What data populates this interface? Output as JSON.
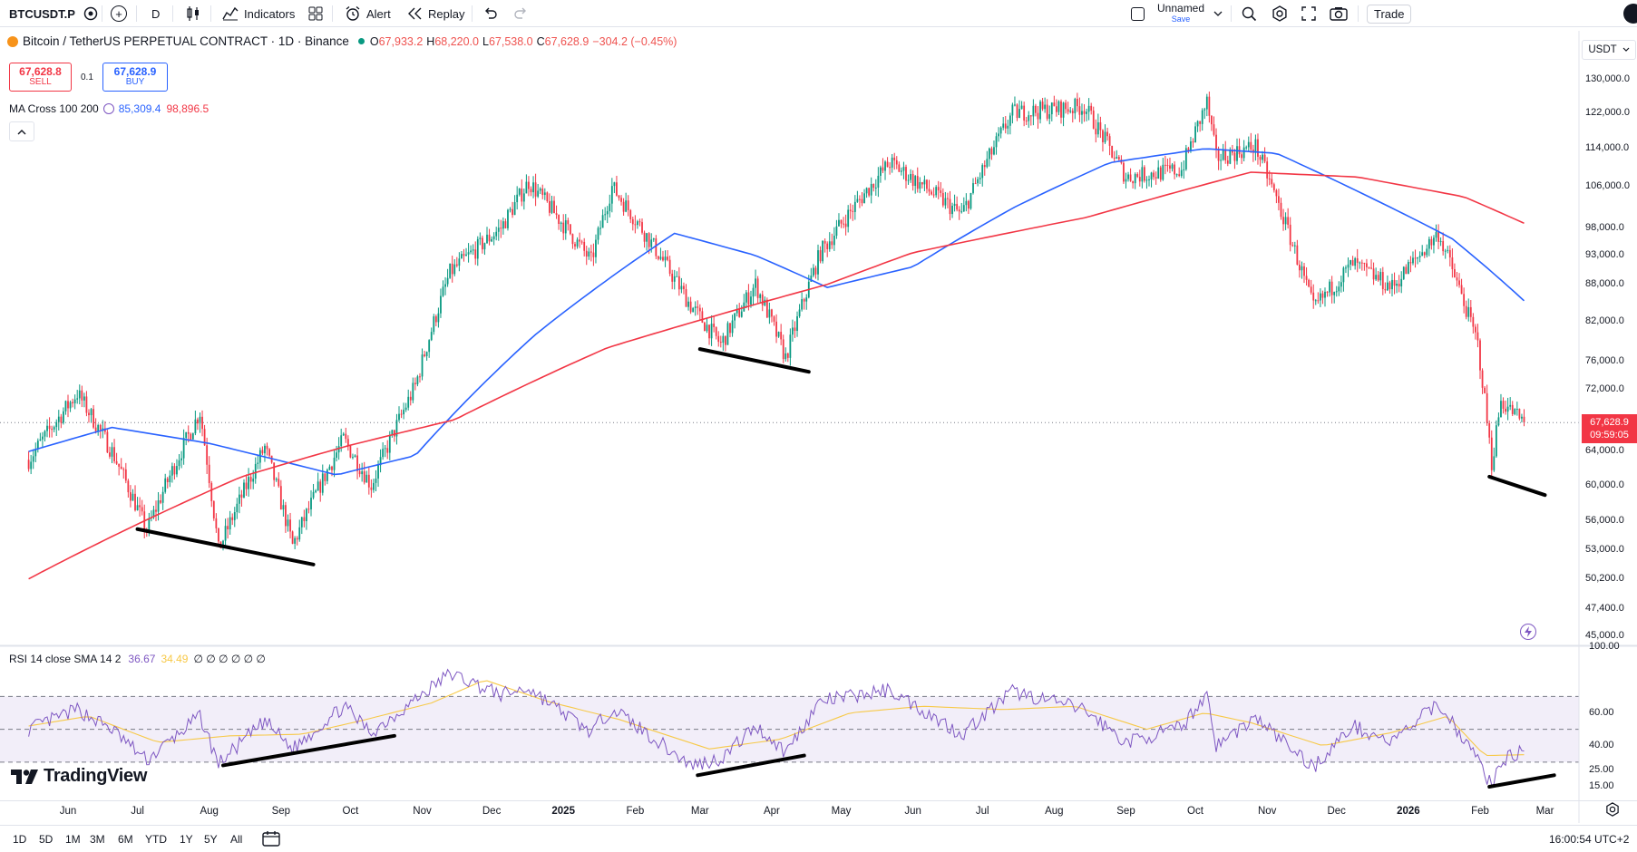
{
  "toolbar": {
    "symbol": "BTCUSDT.P",
    "interval": "D",
    "indicators": "Indicators",
    "alert": "Alert",
    "replay": "Replay",
    "layout_name": "Unnamed",
    "layout_save": "Save",
    "trade": "Trade"
  },
  "legend": {
    "title": "Bitcoin / TetherUS PERPETUAL CONTRACT · 1D · Binance",
    "o_label": "O",
    "o_val": "67,933.2",
    "h_label": "H",
    "h_val": "68,220.0",
    "l_label": "L",
    "l_val": "67,538.0",
    "c_label": "C",
    "c_val": "67,628.9",
    "change": "−304.2 (−0.45%)",
    "sell_price": "67,628.8",
    "sell_label": "SELL",
    "spread": "0.1",
    "buy_price": "67,628.9",
    "buy_label": "BUY",
    "ma_name": "MA Cross 100 200",
    "ma_fast": "85,309.4",
    "ma_slow": "98,896.5"
  },
  "rsi": {
    "name": "RSI 14 close SMA 14 2",
    "rsi_val": "36.67",
    "sma_val": "34.49",
    "extra": "∅ ∅ ∅ ∅ ∅ ∅"
  },
  "price_axis": {
    "currency": "USDT",
    "ticks": [
      "130,000.0",
      "122,000.0",
      "114,000.0",
      "106,000.0",
      "98,000.0",
      "93,000.0",
      "88,000.0",
      "82,000.0",
      "76,000.0",
      "72,000.0",
      "64,000.0",
      "60,000.0",
      "56,000.0",
      "53,000.0",
      "50,200.0",
      "47,400.0",
      "45,000.0"
    ],
    "last_price": "67,628.9",
    "countdown": "09:59:05"
  },
  "rsi_axis": {
    "ticks": [
      "100.00",
      "60.00",
      "40.00",
      "25.00",
      "15.00"
    ]
  },
  "time_axis": {
    "ticks": [
      "Jun",
      "Jul",
      "Aug",
      "Sep",
      "Oct",
      "Nov",
      "Dec",
      "2025",
      "Feb",
      "Mar",
      "Apr",
      "May",
      "Jun",
      "Jul",
      "Aug",
      "Sep",
      "Oct",
      "Nov",
      "Dec",
      "2026",
      "Feb",
      "Mar"
    ]
  },
  "watermark": "TradingView",
  "bottom": {
    "ranges": [
      "1D",
      "5D",
      "1M",
      "3M",
      "6M",
      "YTD",
      "1Y",
      "5Y",
      "All"
    ],
    "clock": "16:00:54 UTC+2"
  },
  "colors": {
    "up": "#089981",
    "down": "#f23645",
    "ma_fast": "#2962ff",
    "ma_slow": "#f23645",
    "rsi": "#7e57c2",
    "rsi_sma": "#f7c948"
  },
  "chart_data": {
    "type": "candlestick",
    "title": "Bitcoin / TetherUS PERPETUAL CONTRACT · 1D · Binance",
    "y_scale": "log",
    "ylim": [
      45000,
      132000
    ],
    "x_start": "2024-05-15",
    "x_end": "2026-02-20",
    "close_path": [
      [
        "2024-05-15",
        63000
      ],
      [
        "2024-06-05",
        71500
      ],
      [
        "2024-06-20",
        64000
      ],
      [
        "2024-07-05",
        55000
      ],
      [
        "2024-07-28",
        69000
      ],
      [
        "2024-08-05",
        53000
      ],
      [
        "2024-08-25",
        64500
      ],
      [
        "2024-09-06",
        53500
      ],
      [
        "2024-09-28",
        65500
      ],
      [
        "2024-10-10",
        60000
      ],
      [
        "2024-10-29",
        72500
      ],
      [
        "2024-11-13",
        90000
      ],
      [
        "2024-12-05",
        98000
      ],
      [
        "2024-12-17",
        107000
      ],
      [
        "2025-01-13",
        92000
      ],
      [
        "2025-01-22",
        106000
      ],
      [
        "2025-02-25",
        84500
      ],
      [
        "2025-03-10",
        78500
      ],
      [
        "2025-03-25",
        88000
      ],
      [
        "2025-04-07",
        76500
      ],
      [
        "2025-04-22",
        93500
      ],
      [
        "2025-05-22",
        111000
      ],
      [
        "2025-06-22",
        100500
      ],
      [
        "2025-07-14",
        122000
      ],
      [
        "2025-08-14",
        123500
      ],
      [
        "2025-09-01",
        108000
      ],
      [
        "2025-09-25",
        109500
      ],
      [
        "2025-10-06",
        124500
      ],
      [
        "2025-10-10",
        112000
      ],
      [
        "2025-10-27",
        114500
      ],
      [
        "2025-11-21",
        84000
      ],
      [
        "2025-12-08",
        91500
      ],
      [
        "2025-12-25",
        87500
      ],
      [
        "2026-01-14",
        97000
      ],
      [
        "2026-01-31",
        78500
      ],
      [
        "2026-02-06",
        62500
      ],
      [
        "2026-02-10",
        70500
      ],
      [
        "2026-02-20",
        67628.9
      ]
    ],
    "ma100_path": [
      [
        "2024-05-15",
        64000
      ],
      [
        "2024-06-20",
        67000
      ],
      [
        "2024-08-01",
        65000
      ],
      [
        "2024-09-25",
        61200
      ],
      [
        "2024-10-29",
        63500
      ],
      [
        "2024-12-20",
        80000
      ],
      [
        "2025-02-18",
        97000
      ],
      [
        "2025-03-25",
        93000
      ],
      [
        "2025-04-25",
        87500
      ],
      [
        "2025-06-01",
        91000
      ],
      [
        "2025-07-15",
        102000
      ],
      [
        "2025-08-25",
        111000
      ],
      [
        "2025-10-05",
        114000
      ],
      [
        "2025-11-05",
        113000
      ],
      [
        "2025-12-15",
        104000
      ],
      [
        "2026-01-20",
        96000
      ],
      [
        "2026-02-20",
        85309.4
      ]
    ],
    "ma200_path": [
      [
        "2024-05-15",
        50200
      ],
      [
        "2024-08-15",
        61000
      ],
      [
        "2024-09-30",
        64700
      ],
      [
        "2024-11-15",
        68000
      ],
      [
        "2025-01-20",
        78000
      ],
      [
        "2025-04-25",
        88000
      ],
      [
        "2025-06-01",
        93500
      ],
      [
        "2025-08-15",
        100000
      ],
      [
        "2025-10-25",
        109000
      ],
      [
        "2025-12-10",
        108000
      ],
      [
        "2026-01-25",
        104000
      ],
      [
        "2026-02-20",
        98896.5
      ]
    ],
    "trendlines": [
      [
        [
          "2024-07-01",
          55200
        ],
        [
          "2024-09-15",
          51600
        ]
      ],
      [
        [
          "2025-03-01",
          77800
        ],
        [
          "2025-04-17",
          74500
        ]
      ],
      [
        [
          "2026-02-05",
          61000
        ],
        [
          "2026-03-01",
          58900
        ]
      ]
    ],
    "rsi_path": [
      [
        "2024-05-15",
        50
      ],
      [
        "2024-06-05",
        62
      ],
      [
        "2024-06-20",
        50
      ],
      [
        "2024-07-05",
        31
      ],
      [
        "2024-07-28",
        58
      ],
      [
        "2024-08-05",
        29
      ],
      [
        "2024-08-25",
        55
      ],
      [
        "2024-09-06",
        38
      ],
      [
        "2024-09-28",
        64
      ],
      [
        "2024-10-10",
        48
      ],
      [
        "2024-10-29",
        68
      ],
      [
        "2024-11-13",
        84
      ],
      [
        "2024-12-05",
        71
      ],
      [
        "2024-12-17",
        75
      ],
      [
        "2025-01-13",
        48
      ],
      [
        "2025-01-22",
        63
      ],
      [
        "2025-02-25",
        28
      ],
      [
        "2025-03-10",
        32
      ],
      [
        "2025-03-25",
        52
      ],
      [
        "2025-04-07",
        36
      ],
      [
        "2025-04-22",
        67
      ],
      [
        "2025-05-22",
        74
      ],
      [
        "2025-06-22",
        47
      ],
      [
        "2025-07-14",
        73
      ],
      [
        "2025-08-14",
        62
      ],
      [
        "2025-09-01",
        42
      ],
      [
        "2025-09-25",
        51
      ],
      [
        "2025-10-06",
        72
      ],
      [
        "2025-10-10",
        40
      ],
      [
        "2025-10-27",
        57
      ],
      [
        "2025-11-21",
        27
      ],
      [
        "2025-12-08",
        52
      ],
      [
        "2025-12-25",
        42
      ],
      [
        "2026-01-14",
        66
      ],
      [
        "2026-01-31",
        32
      ],
      [
        "2026-02-06",
        15
      ],
      [
        "2026-02-10",
        31
      ],
      [
        "2026-02-20",
        36.67
      ]
    ],
    "rsi_sma_path": [
      [
        "2024-05-15",
        52
      ],
      [
        "2024-06-10",
        58
      ],
      [
        "2024-07-10",
        42
      ],
      [
        "2024-08-10",
        46
      ],
      [
        "2024-09-10",
        47
      ],
      [
        "2024-10-05",
        55
      ],
      [
        "2024-11-05",
        66
      ],
      [
        "2024-11-28",
        80
      ],
      [
        "2024-12-25",
        67
      ],
      [
        "2025-01-25",
        56
      ],
      [
        "2025-03-05",
        38
      ],
      [
        "2025-04-05",
        44
      ],
      [
        "2025-05-05",
        60
      ],
      [
        "2025-06-05",
        64
      ],
      [
        "2025-07-10",
        62
      ],
      [
        "2025-08-10",
        64
      ],
      [
        "2025-09-10",
        50
      ],
      [
        "2025-10-05",
        60
      ],
      [
        "2025-10-25",
        54
      ],
      [
        "2025-11-25",
        40
      ],
      [
        "2025-12-25",
        48
      ],
      [
        "2026-01-18",
        58
      ],
      [
        "2026-02-03",
        34
      ],
      [
        "2026-02-20",
        34.49
      ]
    ],
    "rsi_trendlines": [
      [
        [
          "2024-08-07",
          28
        ],
        [
          "2024-10-20",
          46
        ]
      ],
      [
        [
          "2025-02-28",
          22
        ],
        [
          "2025-04-15",
          34
        ]
      ],
      [
        [
          "2026-02-05",
          15
        ],
        [
          "2026-03-05",
          22
        ]
      ]
    ],
    "rsi_bands": [
      30,
      50,
      70
    ]
  }
}
